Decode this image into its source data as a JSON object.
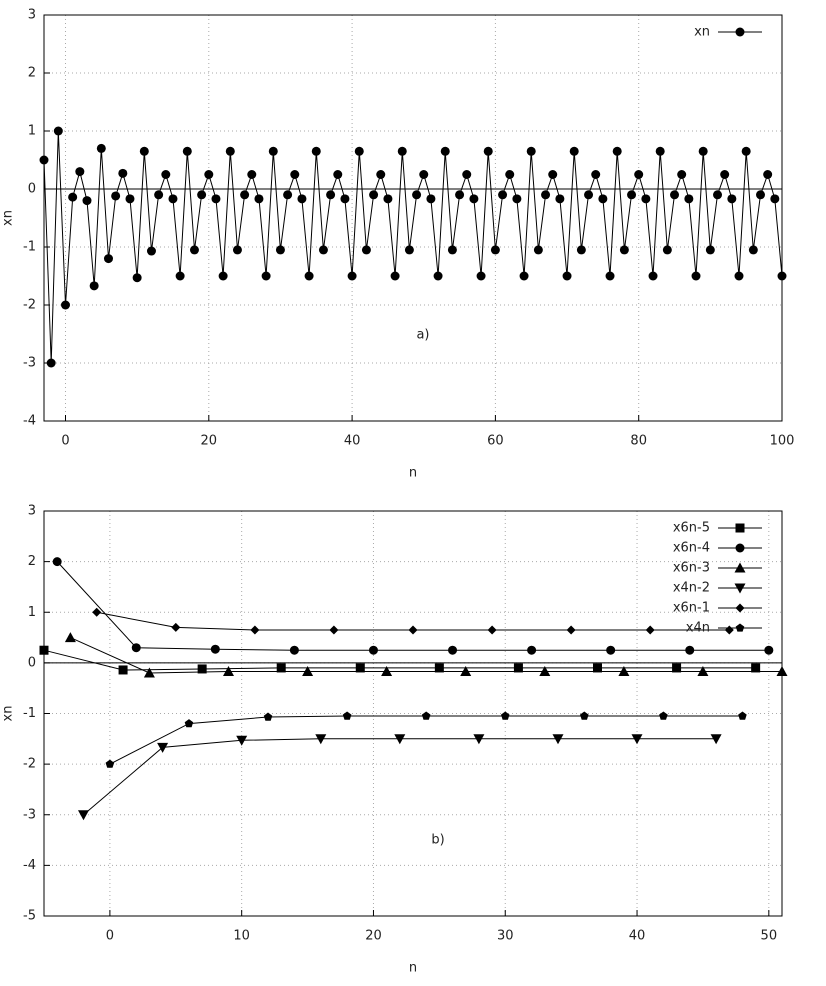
{
  "chart_data": [
    {
      "type": "line",
      "xlabel": "n",
      "ylabel": "xn",
      "annotation": "a)",
      "xlim": [
        -3,
        100
      ],
      "ylim": [
        -4,
        3
      ],
      "xticks": [
        0,
        20,
        40,
        60,
        80,
        100
      ],
      "yticks": [
        -4,
        -3,
        -2,
        -1,
        0,
        1,
        2,
        3
      ],
      "grid": true,
      "legend": "upper right",
      "series": [
        {
          "name": "xn",
          "color": "#000000",
          "marker": "circle",
          "x": [
            -3,
            -2,
            -1,
            0,
            1,
            2,
            3,
            4,
            5,
            6,
            7,
            8,
            9,
            10,
            11,
            12,
            13,
            14,
            15,
            16,
            17,
            18,
            19,
            20,
            21,
            22,
            23,
            24,
            25,
            26,
            27,
            28,
            29,
            30,
            31,
            32,
            33,
            34,
            35,
            36,
            37,
            38,
            39,
            40,
            41,
            42,
            43,
            44,
            45,
            46,
            47,
            48,
            49,
            50,
            51,
            52,
            53,
            54,
            55,
            56,
            57,
            58,
            59,
            60,
            61,
            62,
            63,
            64,
            65,
            66,
            67,
            68,
            69,
            70,
            71,
            72,
            73,
            74,
            75,
            76,
            77,
            78,
            79,
            80,
            81,
            82,
            83,
            84,
            85,
            86,
            87,
            88,
            89,
            90,
            91,
            92,
            93,
            94,
            95,
            96,
            97,
            98,
            99,
            100
          ],
          "values": [
            0.5,
            -3,
            1,
            -2,
            -0.14,
            0.3,
            -0.2,
            -1.67,
            0.7,
            -1.2,
            -0.12,
            0.27,
            -0.17,
            -1.53,
            0.65,
            -1.07,
            -0.1,
            0.25,
            -0.17,
            -1.5,
            0.65,
            -1.05,
            -0.1,
            0.25,
            -0.17,
            -1.5,
            0.65,
            -1.05,
            -0.1,
            0.25,
            -0.17,
            -1.5,
            0.65,
            -1.05,
            -0.1,
            0.25,
            -0.17,
            -1.5,
            0.65,
            -1.05,
            -0.1,
            0.25,
            -0.17,
            -1.5,
            0.65,
            -1.05,
            -0.1,
            0.25,
            -0.17,
            -1.5,
            0.65,
            -1.05,
            -0.1,
            0.25,
            -0.17,
            -1.5,
            0.65,
            -1.05,
            -0.1,
            0.25,
            -0.17,
            -1.5,
            0.65,
            -1.05,
            -0.1,
            0.25,
            -0.17,
            -1.5,
            0.65,
            -1.05,
            -0.1,
            0.25,
            -0.17,
            -1.5,
            0.65,
            -1.05,
            -0.1,
            0.25,
            -0.17,
            -1.5,
            0.65,
            -1.05,
            -0.1,
            0.25,
            -0.17,
            -1.5,
            0.65,
            -1.05,
            -0.1,
            0.25,
            -0.17,
            -1.5,
            0.65,
            -1.05,
            -0.1,
            0.25,
            -0.17,
            -1.5,
            0.65,
            -1.05,
            -0.1,
            0.25,
            -0.17,
            -1.5
          ]
        }
      ]
    },
    {
      "type": "line",
      "xlabel": "n",
      "ylabel": "xn",
      "annotation": "b)",
      "xlim": [
        -5,
        51
      ],
      "ylim": [
        -5,
        3
      ],
      "xticks": [
        0,
        10,
        20,
        30,
        40,
        50
      ],
      "yticks": [
        -5,
        -4,
        -3,
        -2,
        -1,
        0,
        1,
        2,
        3
      ],
      "grid": true,
      "legend": "upper right",
      "series": [
        {
          "name": "x6n-5",
          "color": "#000000",
          "marker": "square",
          "x": [
            -5,
            1,
            7,
            13,
            19,
            25,
            31,
            37,
            43,
            49
          ],
          "values": [
            0.25,
            -0.14,
            -0.12,
            -0.1,
            -0.1,
            -0.1,
            -0.1,
            -0.1,
            -0.1,
            -0.1
          ]
        },
        {
          "name": "x6n-4",
          "color": "#000000",
          "marker": "circle",
          "x": [
            -4,
            2,
            8,
            14,
            20,
            26,
            32,
            38,
            44,
            50
          ],
          "values": [
            2,
            0.3,
            0.27,
            0.25,
            0.25,
            0.25,
            0.25,
            0.25,
            0.25,
            0.25
          ]
        },
        {
          "name": "x6n-3",
          "color": "#000000",
          "marker": "triangle-up",
          "x": [
            -3,
            3,
            9,
            15,
            21,
            27,
            33,
            39,
            45,
            51
          ],
          "values": [
            0.5,
            -0.2,
            -0.17,
            -0.17,
            -0.17,
            -0.17,
            -0.17,
            -0.17,
            -0.17,
            -0.17
          ]
        },
        {
          "name": "x4n-2",
          "color": "#000000",
          "marker": "triangle-down",
          "x": [
            -2,
            4,
            10,
            16,
            22,
            28,
            34,
            40,
            46
          ],
          "values": [
            -3,
            -1.67,
            -1.53,
            -1.5,
            -1.5,
            -1.5,
            -1.5,
            -1.5,
            -1.5
          ]
        },
        {
          "name": "x6n-1",
          "color": "#000000",
          "marker": "diamond",
          "x": [
            -1,
            5,
            11,
            17,
            23,
            29,
            35,
            41,
            47
          ],
          "values": [
            1,
            0.7,
            0.65,
            0.65,
            0.65,
            0.65,
            0.65,
            0.65,
            0.65
          ]
        },
        {
          "name": "x4n",
          "color": "#000000",
          "marker": "pentagon",
          "x": [
            0,
            6,
            12,
            18,
            24,
            30,
            36,
            42,
            48
          ],
          "values": [
            -2,
            -1.2,
            -1.07,
            -1.05,
            -1.05,
            -1.05,
            -1.05,
            -1.05,
            -1.05
          ]
        }
      ]
    }
  ]
}
